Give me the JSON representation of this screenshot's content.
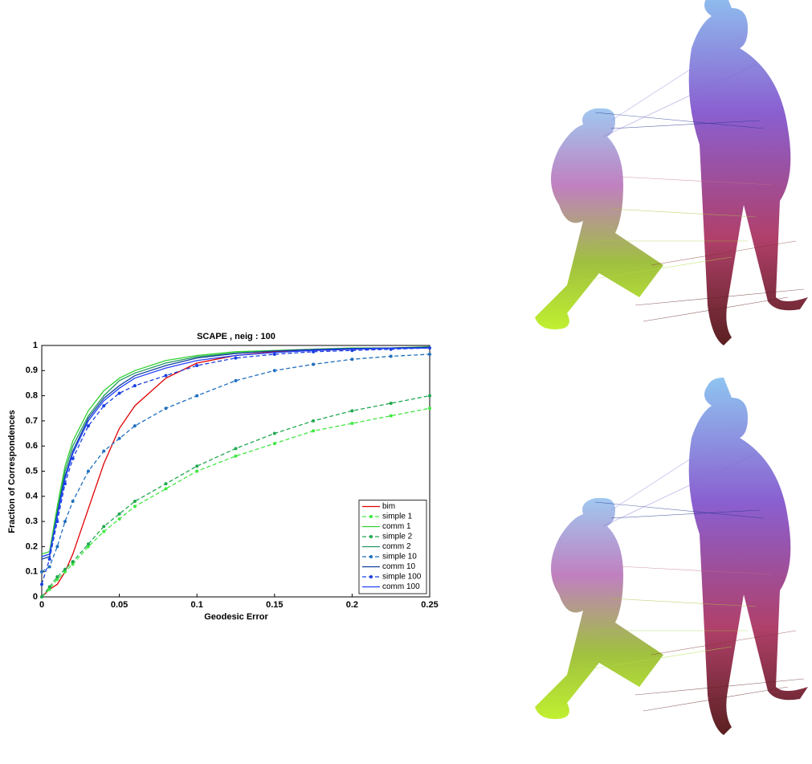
{
  "chart_data": {
    "type": "line",
    "title": "SCAPE , neig : 100",
    "x_label": "Geodesic Error",
    "y_label": "Fraction of Correspondences",
    "x": [
      0,
      0.005,
      0.01,
      0.015,
      0.02,
      0.03,
      0.04,
      0.05,
      0.06,
      0.08,
      0.1,
      0.125,
      0.15,
      0.175,
      0.2,
      0.225,
      0.25
    ],
    "xlim": [
      0,
      0.25
    ],
    "xticks": [
      0,
      0.05,
      0.1,
      0.15,
      0.2,
      0.25
    ],
    "ylim": [
      0,
      1
    ],
    "yticks": [
      0,
      0.1,
      0.2,
      0.3,
      0.4,
      0.5,
      0.6,
      0.7,
      0.8,
      0.9,
      1
    ],
    "legend": "lower right",
    "series": [
      {
        "name": "bim",
        "color": "#e00000",
        "dashed": false,
        "values": [
          0,
          0.03,
          0.05,
          0.1,
          0.17,
          0.35,
          0.53,
          0.67,
          0.76,
          0.87,
          0.93,
          0.96,
          0.975,
          0.98,
          0.985,
          0.99,
          0.99
        ]
      },
      {
        "name": "simple 1",
        "color": "#40e840",
        "dashed": true,
        "values": [
          0,
          0.03,
          0.07,
          0.1,
          0.13,
          0.2,
          0.26,
          0.31,
          0.36,
          0.43,
          0.5,
          0.56,
          0.61,
          0.66,
          0.69,
          0.72,
          0.75
        ]
      },
      {
        "name": "comm 1",
        "color": "#30d030",
        "dashed": false,
        "values": [
          0.17,
          0.18,
          0.36,
          0.52,
          0.62,
          0.74,
          0.82,
          0.87,
          0.9,
          0.94,
          0.96,
          0.975,
          0.98,
          0.985,
          0.99,
          0.99,
          0.995
        ]
      },
      {
        "name": "simple 2",
        "color": "#20a850",
        "dashed": true,
        "values": [
          0,
          0.04,
          0.08,
          0.11,
          0.14,
          0.21,
          0.28,
          0.33,
          0.38,
          0.45,
          0.52,
          0.59,
          0.65,
          0.7,
          0.74,
          0.77,
          0.8
        ]
      },
      {
        "name": "comm 2",
        "color": "#209860",
        "dashed": false,
        "values": [
          0.16,
          0.17,
          0.34,
          0.5,
          0.6,
          0.72,
          0.8,
          0.86,
          0.89,
          0.93,
          0.955,
          0.97,
          0.978,
          0.984,
          0.988,
          0.99,
          0.992
        ]
      },
      {
        "name": "simple 10",
        "color": "#1f6fbf",
        "dashed": true,
        "values": [
          0.1,
          0.12,
          0.2,
          0.3,
          0.38,
          0.5,
          0.58,
          0.63,
          0.68,
          0.75,
          0.8,
          0.86,
          0.9,
          0.925,
          0.945,
          0.957,
          0.965
        ]
      },
      {
        "name": "comm 10",
        "color": "#103f9f",
        "dashed": false,
        "values": [
          0.15,
          0.16,
          0.33,
          0.48,
          0.58,
          0.71,
          0.79,
          0.84,
          0.88,
          0.92,
          0.95,
          0.968,
          0.978,
          0.984,
          0.988,
          0.99,
          0.993
        ]
      },
      {
        "name": "simple 100",
        "color": "#1a3fe0",
        "dashed": true,
        "values": [
          0.05,
          0.15,
          0.3,
          0.45,
          0.55,
          0.68,
          0.76,
          0.81,
          0.84,
          0.88,
          0.92,
          0.95,
          0.965,
          0.975,
          0.98,
          0.985,
          0.99
        ]
      },
      {
        "name": "comm 100",
        "color": "#2040ff",
        "dashed": false,
        "values": [
          0.16,
          0.17,
          0.32,
          0.47,
          0.57,
          0.7,
          0.78,
          0.83,
          0.87,
          0.91,
          0.94,
          0.96,
          0.972,
          0.98,
          0.985,
          0.988,
          0.99
        ]
      }
    ]
  }
}
